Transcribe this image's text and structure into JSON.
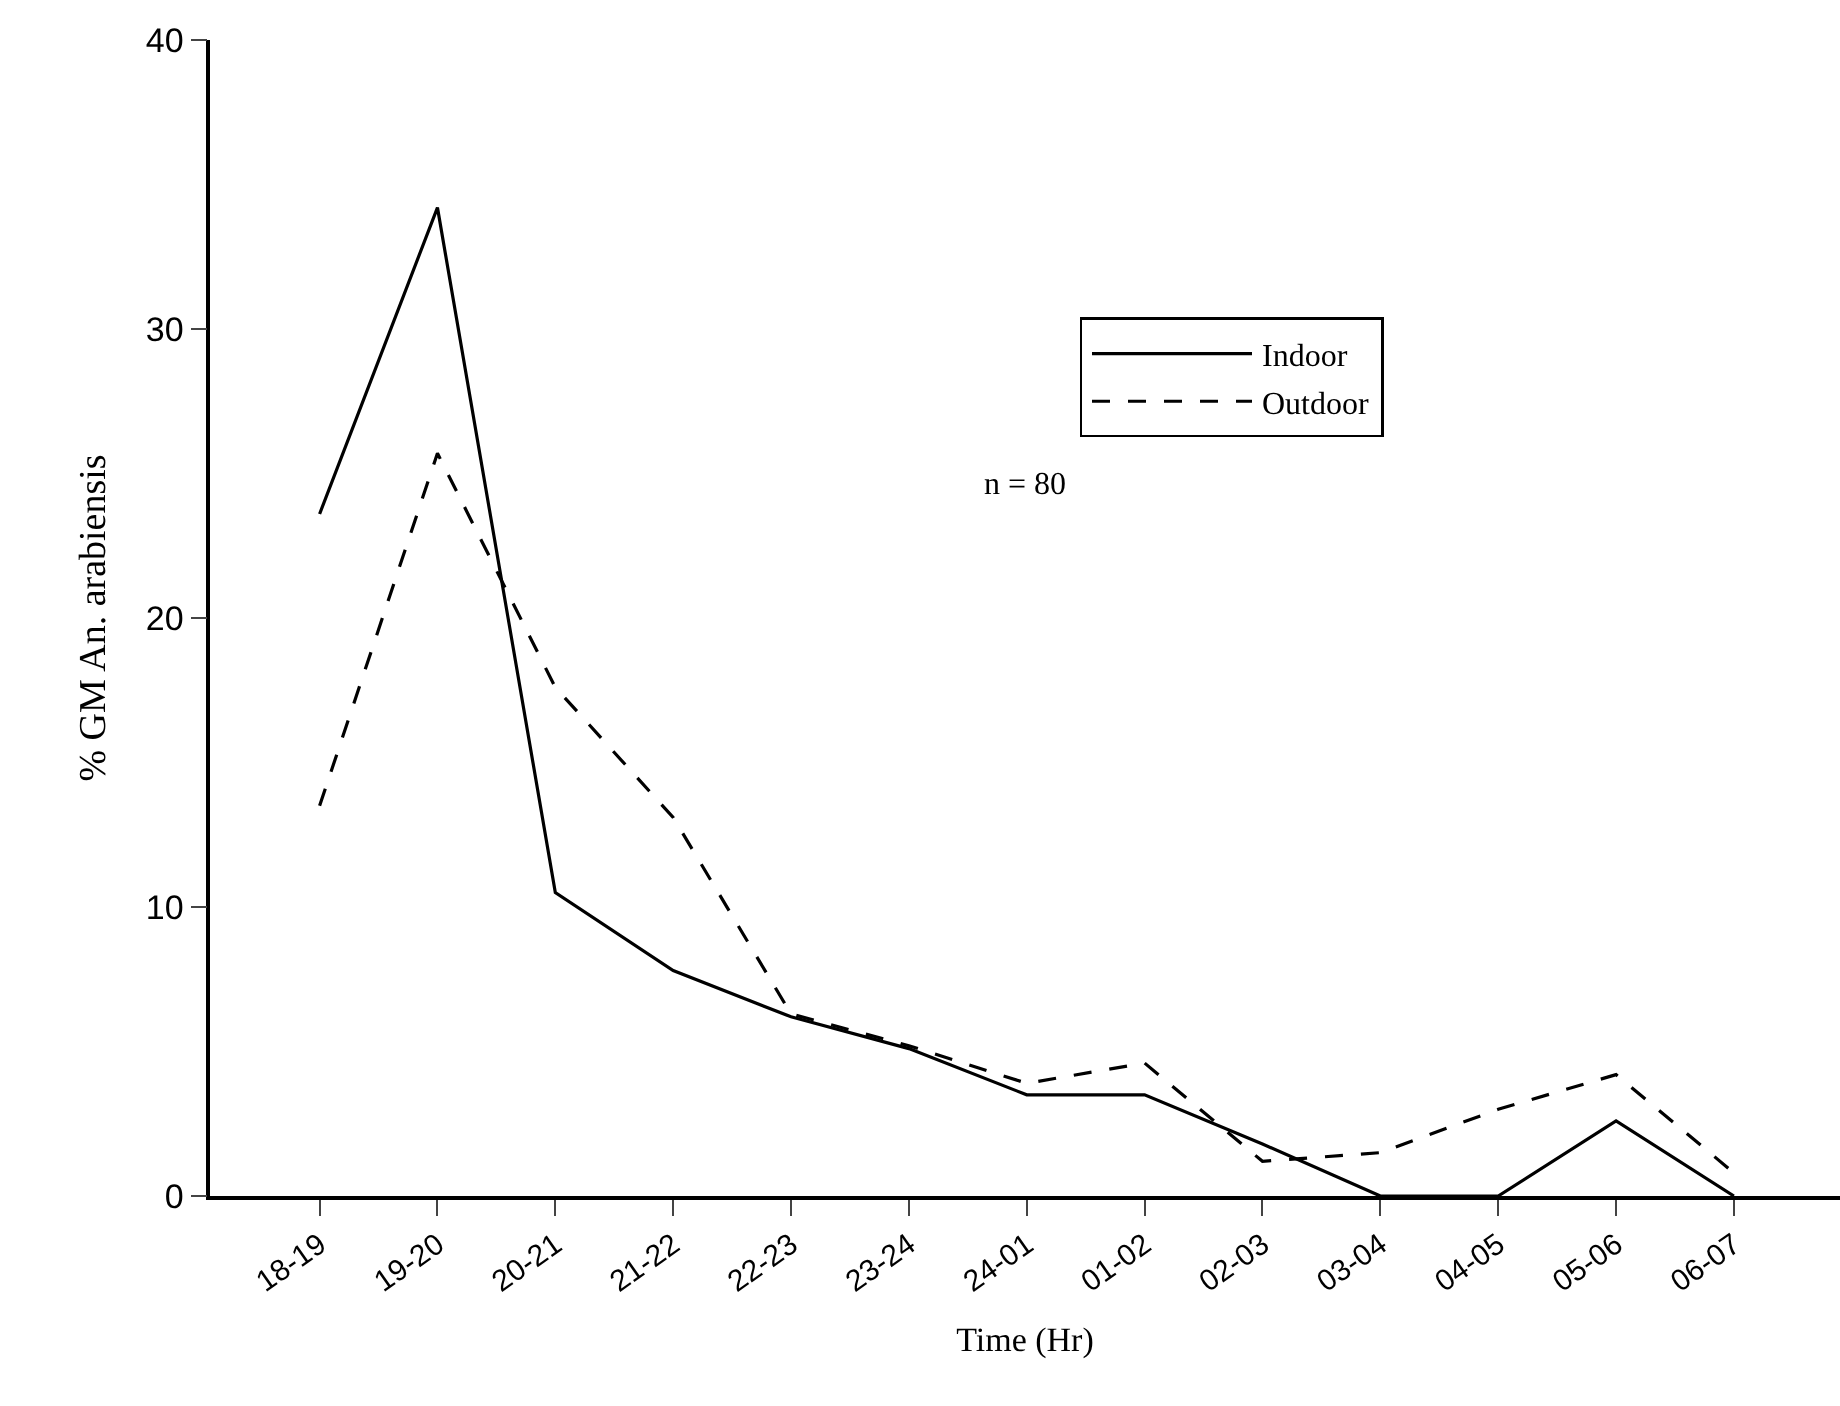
{
  "chart_data": {
    "type": "line",
    "xlabel": "Time (Hr)",
    "ylabel": "% GM An. arabiensis",
    "categories": [
      "18-19",
      "19-20",
      "20-21",
      "21-22",
      "22-23",
      "23-24",
      "24-01",
      "01-02",
      "02-03",
      "03-04",
      "04-05",
      "05-06",
      "06-07"
    ],
    "series": [
      {
        "name": "Indoor",
        "color": "#000000",
        "line_style": "solid",
        "values": [
          23.6,
          34.2,
          10.5,
          7.8,
          6.2,
          5.1,
          3.5,
          3.5,
          1.8,
          0,
          0,
          2.6,
          0
        ]
      },
      {
        "name": "Outdoor",
        "color": "#000000",
        "line_style": "dashed",
        "values": [
          13.5,
          25.7,
          17.6,
          13.1,
          6.3,
          5.2,
          3.9,
          4.6,
          1.2,
          1.5,
          3.0,
          4.2,
          0.8
        ]
      }
    ],
    "ylim": [
      0,
      40
    ],
    "yticks": [
      0,
      10,
      20,
      30,
      40
    ],
    "legend": "top right",
    "marker": "none",
    "annotations": [
      "n = 80"
    ]
  }
}
